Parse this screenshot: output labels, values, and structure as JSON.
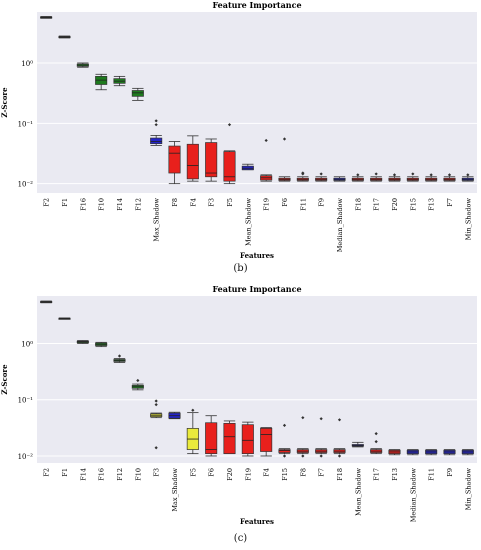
{
  "captions": {
    "b": "(b)",
    "c": "(c)"
  },
  "chart_data": [
    {
      "type": "box",
      "title": "Feature Importance",
      "xlabel": "Features",
      "ylabel": "Z-Score",
      "y_scale": "log",
      "ylim": [
        0.007,
        7
      ],
      "y_ticks": [
        {
          "value": 0.01,
          "label": "10⁻²"
        },
        {
          "value": 0.1,
          "label": "10⁻¹"
        },
        {
          "value": 1,
          "label": "10⁰"
        }
      ],
      "colors": {
        "plot_bg": "#eaeaf2",
        "grid": "#ffffff",
        "green": "#1e7a1e",
        "red": "#e8201c",
        "blue": "#2424c8",
        "yellow": "#eaea3c",
        "dark": "#333333"
      },
      "boxes": [
        {
          "category": "F2",
          "color": "dark",
          "min": 5.5,
          "q1": 5.6,
          "median": 5.7,
          "q3": 5.8,
          "max": 5.9,
          "outliers": []
        },
        {
          "category": "F1",
          "color": "dark",
          "min": 2.6,
          "q1": 2.65,
          "median": 2.7,
          "q3": 2.75,
          "max": 2.8,
          "outliers": []
        },
        {
          "category": "F16",
          "color": "green",
          "min": 0.85,
          "q1": 0.88,
          "median": 0.92,
          "q3": 0.96,
          "max": 1.0,
          "outliers": []
        },
        {
          "category": "F10",
          "color": "green",
          "min": 0.36,
          "q1": 0.44,
          "median": 0.52,
          "q3": 0.6,
          "max": 0.65,
          "outliers": []
        },
        {
          "category": "F14",
          "color": "green",
          "min": 0.42,
          "q1": 0.46,
          "median": 0.5,
          "q3": 0.55,
          "max": 0.6,
          "outliers": []
        },
        {
          "category": "F12",
          "color": "green",
          "min": 0.24,
          "q1": 0.28,
          "median": 0.32,
          "q3": 0.35,
          "max": 0.38,
          "outliers": []
        },
        {
          "category": "Max_Shadow",
          "color": "blue",
          "min": 0.043,
          "q1": 0.046,
          "median": 0.05,
          "q3": 0.057,
          "max": 0.063,
          "outliers": [
            0.11,
            0.095
          ]
        },
        {
          "category": "F8",
          "color": "red",
          "min": 0.01,
          "q1": 0.015,
          "median": 0.032,
          "q3": 0.042,
          "max": 0.05,
          "outliers": []
        },
        {
          "category": "F4",
          "color": "red",
          "min": 0.011,
          "q1": 0.012,
          "median": 0.02,
          "q3": 0.045,
          "max": 0.062,
          "outliers": []
        },
        {
          "category": "F3",
          "color": "red",
          "min": 0.011,
          "q1": 0.013,
          "median": 0.015,
          "q3": 0.048,
          "max": 0.055,
          "outliers": []
        },
        {
          "category": "F5",
          "color": "red",
          "min": 0.01,
          "q1": 0.011,
          "median": 0.013,
          "q3": 0.034,
          "max": 0.035,
          "outliers": [
            0.095
          ]
        },
        {
          "category": "Mean_Shadow",
          "color": "blue",
          "min": 0.017,
          "q1": 0.017,
          "median": 0.018,
          "q3": 0.0195,
          "max": 0.021,
          "outliers": []
        },
        {
          "category": "F19",
          "color": "red",
          "min": 0.011,
          "q1": 0.0115,
          "median": 0.0125,
          "q3": 0.0135,
          "max": 0.014,
          "outliers": [
            0.052
          ]
        },
        {
          "category": "F6",
          "color": "red",
          "min": 0.011,
          "q1": 0.0113,
          "median": 0.0118,
          "q3": 0.0123,
          "max": 0.013,
          "outliers": [
            0.055
          ]
        },
        {
          "category": "F11",
          "color": "red",
          "min": 0.011,
          "q1": 0.0113,
          "median": 0.0118,
          "q3": 0.0123,
          "max": 0.013,
          "outliers": [
            0.015,
            0.0145
          ]
        },
        {
          "category": "F9",
          "color": "red",
          "min": 0.011,
          "q1": 0.0113,
          "median": 0.0118,
          "q3": 0.0123,
          "max": 0.013,
          "outliers": [
            0.0145
          ]
        },
        {
          "category": "Median_Shadow",
          "color": "blue",
          "min": 0.011,
          "q1": 0.0113,
          "median": 0.0118,
          "q3": 0.0123,
          "max": 0.013,
          "outliers": []
        },
        {
          "category": "F18",
          "color": "red",
          "min": 0.011,
          "q1": 0.0113,
          "median": 0.0118,
          "q3": 0.0123,
          "max": 0.013,
          "outliers": [
            0.014
          ]
        },
        {
          "category": "F17",
          "color": "red",
          "min": 0.011,
          "q1": 0.0113,
          "median": 0.0118,
          "q3": 0.0123,
          "max": 0.013,
          "outliers": [
            0.0145
          ]
        },
        {
          "category": "F20",
          "color": "red",
          "min": 0.011,
          "q1": 0.0113,
          "median": 0.0118,
          "q3": 0.0123,
          "max": 0.013,
          "outliers": [
            0.014
          ]
        },
        {
          "category": "F15",
          "color": "red",
          "min": 0.011,
          "q1": 0.0113,
          "median": 0.0118,
          "q3": 0.0123,
          "max": 0.013,
          "outliers": [
            0.0145
          ]
        },
        {
          "category": "F13",
          "color": "red",
          "min": 0.011,
          "q1": 0.0113,
          "median": 0.0118,
          "q3": 0.0123,
          "max": 0.013,
          "outliers": [
            0.014
          ]
        },
        {
          "category": "F7",
          "color": "red",
          "min": 0.011,
          "q1": 0.0113,
          "median": 0.0118,
          "q3": 0.0123,
          "max": 0.013,
          "outliers": [
            0.014
          ]
        },
        {
          "category": "Min_Shadow",
          "color": "blue",
          "min": 0.011,
          "q1": 0.0113,
          "median": 0.0118,
          "q3": 0.0123,
          "max": 0.013,
          "outliers": [
            0.014
          ]
        }
      ]
    },
    {
      "type": "box",
      "title": "Feature Importance",
      "xlabel": "Features",
      "ylabel": "Z-Score",
      "y_scale": "log",
      "ylim": [
        0.0075,
        7
      ],
      "y_ticks": [
        {
          "value": 0.01,
          "label": "10⁻²"
        },
        {
          "value": 0.1,
          "label": "10⁻¹"
        },
        {
          "value": 1,
          "label": "10⁰"
        }
      ],
      "colors": {
        "plot_bg": "#eaeaf2",
        "grid": "#ffffff",
        "green": "#1e7a1e",
        "red": "#e8201c",
        "blue": "#2424c8",
        "yellow": "#eaea3c",
        "dark": "#333333"
      },
      "boxes": [
        {
          "category": "F2",
          "color": "dark",
          "min": 5.3,
          "q1": 5.4,
          "median": 5.5,
          "q3": 5.6,
          "max": 5.7,
          "outliers": []
        },
        {
          "category": "F1",
          "color": "dark",
          "min": 2.75,
          "q1": 2.78,
          "median": 2.8,
          "q3": 2.82,
          "max": 2.85,
          "outliers": []
        },
        {
          "category": "F14",
          "color": "green",
          "min": 1.0,
          "q1": 1.03,
          "median": 1.07,
          "q3": 1.1,
          "max": 1.13,
          "outliers": []
        },
        {
          "category": "F16",
          "color": "green",
          "min": 0.88,
          "q1": 0.92,
          "median": 0.97,
          "q3": 1.02,
          "max": 1.05,
          "outliers": []
        },
        {
          "category": "F12",
          "color": "green",
          "min": 0.46,
          "q1": 0.48,
          "median": 0.5,
          "q3": 0.52,
          "max": 0.54,
          "outliers": [
            0.6
          ]
        },
        {
          "category": "F10",
          "color": "green",
          "min": 0.15,
          "q1": 0.16,
          "median": 0.17,
          "q3": 0.18,
          "max": 0.19,
          "outliers": [
            0.22
          ]
        },
        {
          "category": "F3",
          "color": "yellow",
          "min": 0.048,
          "q1": 0.05,
          "median": 0.053,
          "q3": 0.056,
          "max": 0.058,
          "outliers": [
            0.095,
            0.082,
            0.014
          ]
        },
        {
          "category": "Max_Shadow",
          "color": "blue",
          "min": 0.046,
          "q1": 0.047,
          "median": 0.052,
          "q3": 0.058,
          "max": 0.06,
          "outliers": []
        },
        {
          "category": "F5",
          "color": "yellow",
          "min": 0.011,
          "q1": 0.013,
          "median": 0.02,
          "q3": 0.031,
          "max": 0.059,
          "outliers": [
            0.065
          ]
        },
        {
          "category": "F6",
          "color": "red",
          "min": 0.01,
          "q1": 0.011,
          "median": 0.013,
          "q3": 0.039,
          "max": 0.052,
          "outliers": []
        },
        {
          "category": "F20",
          "color": "red",
          "min": 0.011,
          "q1": 0.011,
          "median": 0.022,
          "q3": 0.038,
          "max": 0.042,
          "outliers": []
        },
        {
          "category": "F19",
          "color": "red",
          "min": 0.01,
          "q1": 0.011,
          "median": 0.019,
          "q3": 0.036,
          "max": 0.04,
          "outliers": []
        },
        {
          "category": "F4",
          "color": "red",
          "min": 0.01,
          "q1": 0.012,
          "median": 0.024,
          "q3": 0.031,
          "max": 0.032,
          "outliers": []
        },
        {
          "category": "F15",
          "color": "red",
          "min": 0.011,
          "q1": 0.0115,
          "median": 0.0125,
          "q3": 0.013,
          "max": 0.0135,
          "outliers": [
            0.035,
            0.01
          ]
        },
        {
          "category": "F8",
          "color": "red",
          "min": 0.011,
          "q1": 0.0115,
          "median": 0.0122,
          "q3": 0.013,
          "max": 0.0135,
          "outliers": [
            0.048,
            0.01
          ]
        },
        {
          "category": "F7",
          "color": "red",
          "min": 0.011,
          "q1": 0.0115,
          "median": 0.0122,
          "q3": 0.013,
          "max": 0.0135,
          "outliers": [
            0.046,
            0.01
          ]
        },
        {
          "category": "F18",
          "color": "red",
          "min": 0.011,
          "q1": 0.0115,
          "median": 0.0122,
          "q3": 0.013,
          "max": 0.0135,
          "outliers": [
            0.044,
            0.01
          ]
        },
        {
          "category": "Mean_Shadow",
          "color": "blue",
          "min": 0.0145,
          "q1": 0.015,
          "median": 0.0155,
          "q3": 0.016,
          "max": 0.0175,
          "outliers": []
        },
        {
          "category": "F17",
          "color": "red",
          "min": 0.011,
          "q1": 0.0115,
          "median": 0.0122,
          "q3": 0.013,
          "max": 0.0135,
          "outliers": [
            0.025,
            0.018
          ]
        },
        {
          "category": "F13",
          "color": "red",
          "min": 0.0105,
          "q1": 0.011,
          "median": 0.0118,
          "q3": 0.0126,
          "max": 0.013,
          "outliers": []
        },
        {
          "category": "Median_Shadow",
          "color": "blue",
          "min": 0.0105,
          "q1": 0.011,
          "median": 0.0118,
          "q3": 0.0126,
          "max": 0.013,
          "outliers": []
        },
        {
          "category": "F11",
          "color": "blue",
          "min": 0.0105,
          "q1": 0.011,
          "median": 0.0118,
          "q3": 0.0126,
          "max": 0.013,
          "outliers": []
        },
        {
          "category": "F9",
          "color": "blue",
          "min": 0.0105,
          "q1": 0.011,
          "median": 0.0118,
          "q3": 0.0126,
          "max": 0.013,
          "outliers": []
        },
        {
          "category": "Min_Shadow",
          "color": "blue",
          "min": 0.0105,
          "q1": 0.011,
          "median": 0.0118,
          "q3": 0.0126,
          "max": 0.013,
          "outliers": []
        }
      ]
    }
  ]
}
